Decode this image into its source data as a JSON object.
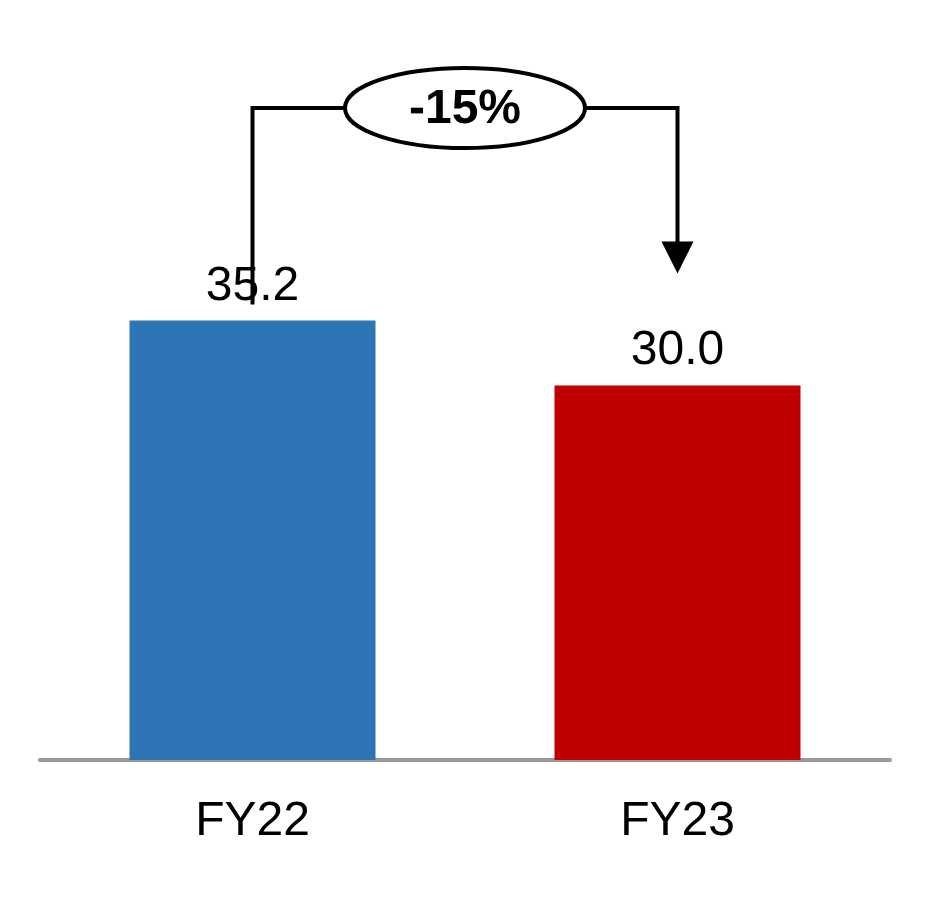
{
  "chart_data": {
    "type": "bar",
    "categories": [
      "FY22",
      "FY23"
    ],
    "values": [
      35.2,
      30.0
    ],
    "colors": [
      "#2e75b6",
      "#c00000"
    ],
    "value_labels": [
      "35.2",
      "30.0"
    ],
    "annotations": [
      "-15%"
    ]
  }
}
